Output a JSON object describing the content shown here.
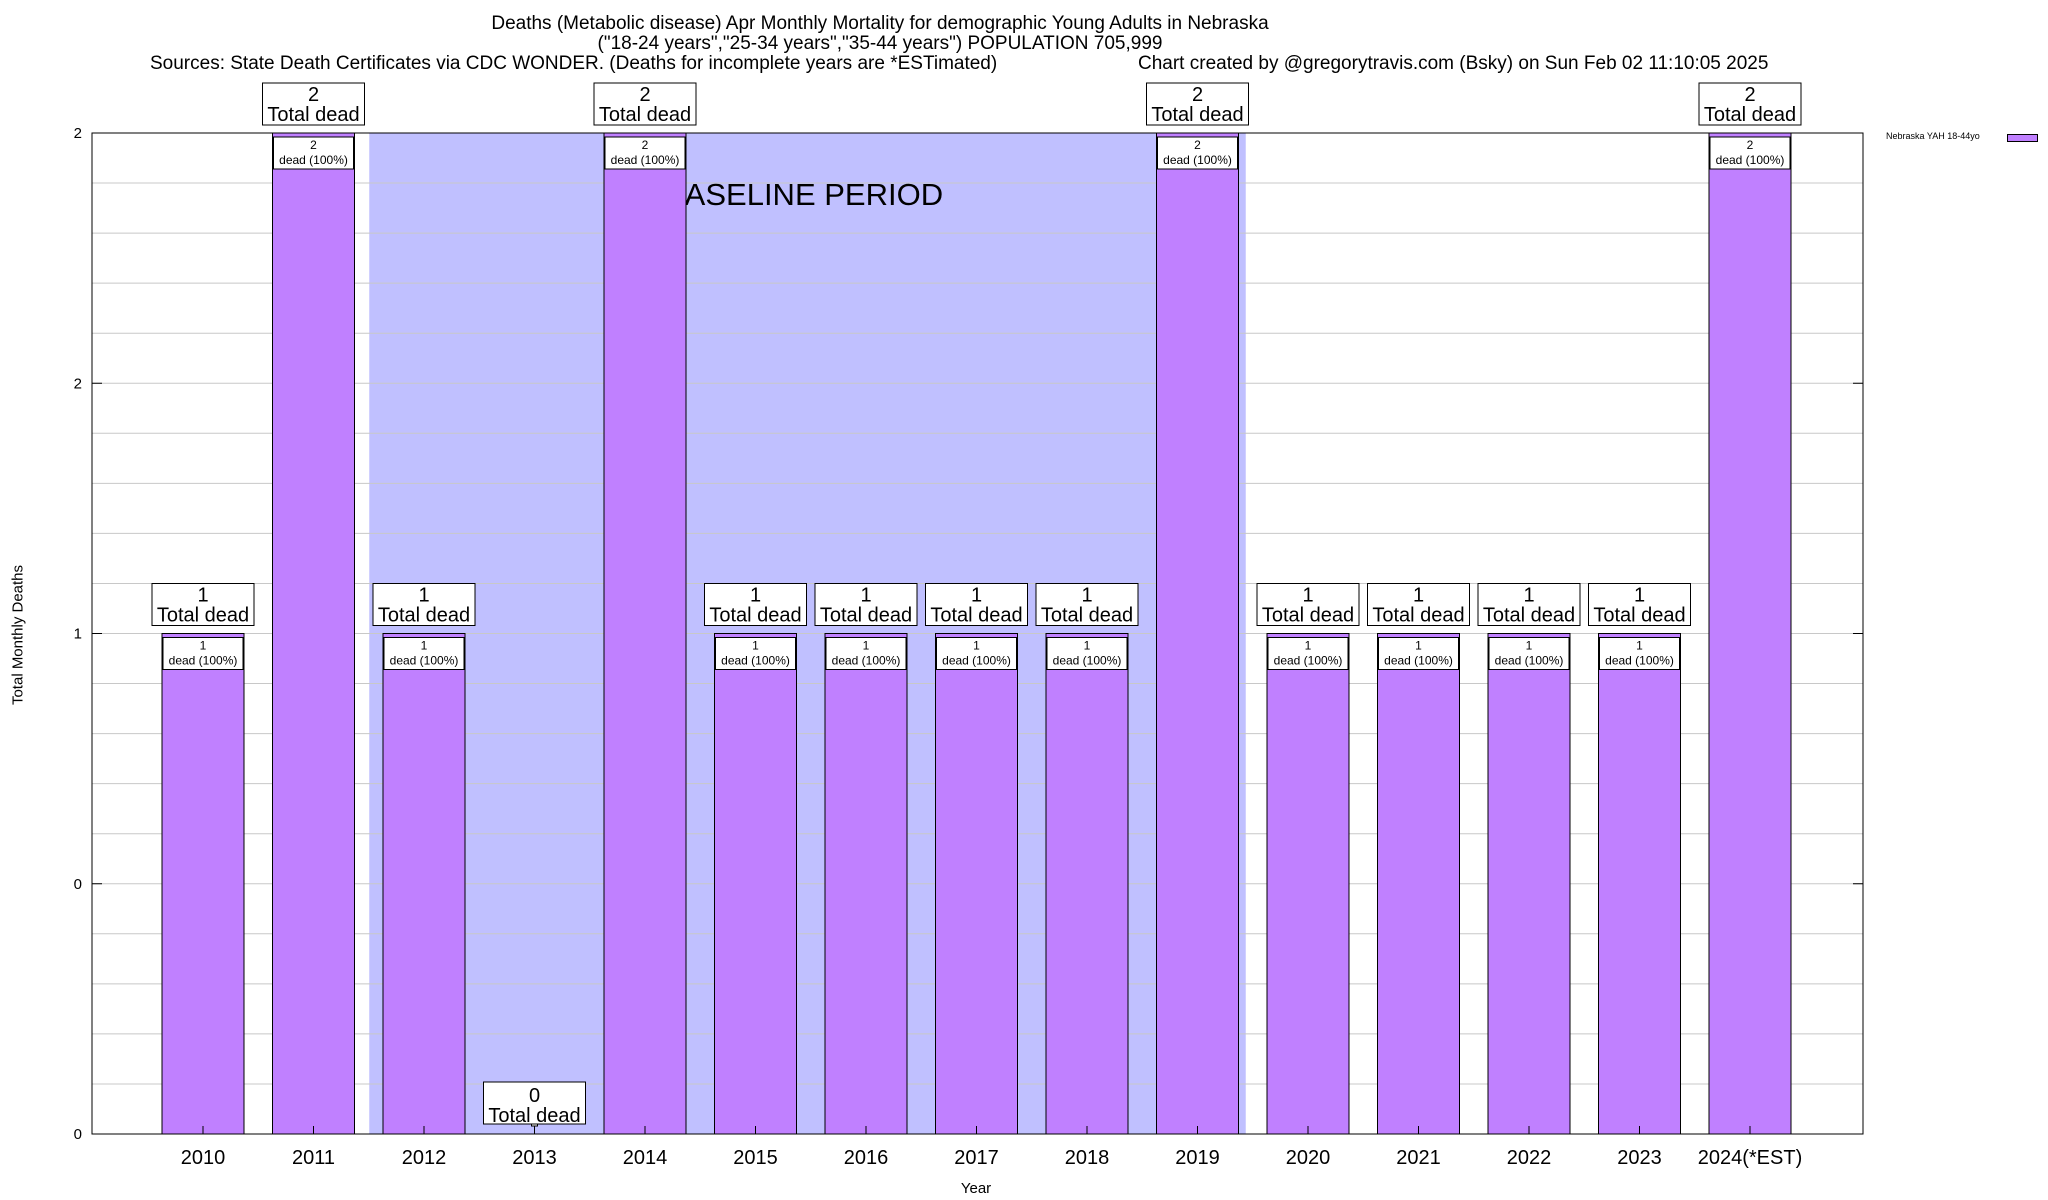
{
  "chart_data": {
    "type": "bar",
    "title_line1": "Deaths (Metabolic disease) Apr Monthly Mortality for demographic Young Adults in Nebraska",
    "title_line2": "(\"18-24 years\",\"25-34 years\",\"35-44 years\") POPULATION 705,999",
    "sources": "Sources: State Death Certificates via CDC WONDER. (Deaths for incomplete years are *ESTimated)",
    "credit": "Chart created by @gregorytravis.com (Bsky) on Sun Feb 02 11:10:05 2025",
    "xlabel": "Year",
    "ylabel": "Total Monthly Deaths",
    "categories": [
      "2010",
      "2011",
      "2012",
      "2013",
      "2014",
      "2015",
      "2016",
      "2017",
      "2018",
      "2019",
      "2020",
      "2021",
      "2022",
      "2023",
      "2024(*EST)"
    ],
    "series": [
      {
        "name": "Nebraska YAH 18-44yo",
        "color": "#c080ff",
        "values": [
          1,
          2,
          1,
          0,
          2,
          1,
          1,
          1,
          1,
          2,
          1,
          1,
          1,
          1,
          2
        ]
      }
    ],
    "total_labels": [
      {
        "value": "1",
        "text": "Total dead"
      },
      {
        "value": "2",
        "text": "Total dead"
      },
      {
        "value": "1",
        "text": "Total dead"
      },
      {
        "value": "0",
        "text": "Total dead"
      },
      {
        "value": "2",
        "text": "Total dead"
      },
      {
        "value": "1",
        "text": "Total dead"
      },
      {
        "value": "1",
        "text": "Total dead"
      },
      {
        "value": "1",
        "text": "Total dead"
      },
      {
        "value": "1",
        "text": "Total dead"
      },
      {
        "value": "2",
        "text": "Total dead"
      },
      {
        "value": "1",
        "text": "Total dead"
      },
      {
        "value": "1",
        "text": "Total dead"
      },
      {
        "value": "1",
        "text": "Total dead"
      },
      {
        "value": "1",
        "text": "Total dead"
      },
      {
        "value": "2",
        "text": "Total dead"
      }
    ],
    "inner_labels": [
      {
        "value": "1",
        "text": "dead (100%)"
      },
      {
        "value": "2",
        "text": "dead (100%)"
      },
      {
        "value": "1",
        "text": "dead (100%)"
      },
      null,
      {
        "value": "2",
        "text": "dead (100%)"
      },
      {
        "value": "1",
        "text": "dead (100%)"
      },
      {
        "value": "1",
        "text": "dead (100%)"
      },
      {
        "value": "1",
        "text": "dead (100%)"
      },
      {
        "value": "1",
        "text": "dead (100%)"
      },
      {
        "value": "2",
        "text": "dead (100%)"
      },
      {
        "value": "1",
        "text": "dead (100%)"
      },
      {
        "value": "1",
        "text": "dead (100%)"
      },
      {
        "value": "1",
        "text": "dead (100%)"
      },
      {
        "value": "1",
        "text": "dead (100%)"
      },
      {
        "value": "2",
        "text": "dead (100%)"
      }
    ],
    "y_tick_labels": [
      "0",
      "0",
      "1",
      "2",
      "2"
    ],
    "ylim": [
      0,
      2
    ],
    "baseline_period": {
      "label": "BASELINE PERIOD",
      "start": "2012",
      "end": "2019",
      "color": "#c0c0ff"
    },
    "grid": true,
    "legend_position": "top-right"
  }
}
